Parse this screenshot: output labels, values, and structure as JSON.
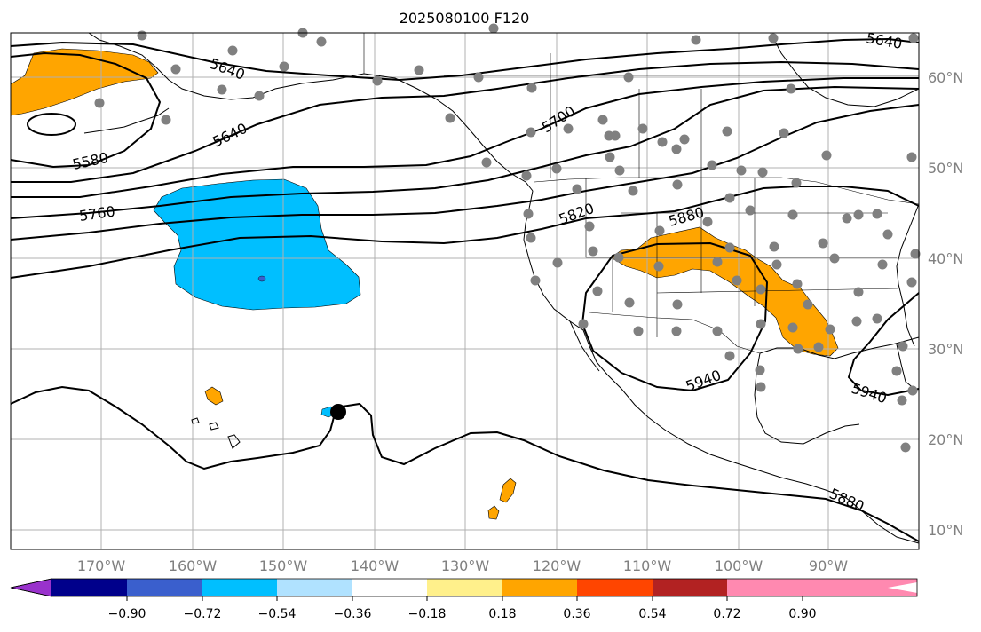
{
  "title": "2025080100 F120",
  "lon_labels": [
    "170°W",
    "160°W",
    "150°W",
    "140°W",
    "130°W",
    "120°W",
    "110°W",
    "100°W",
    "90°W"
  ],
  "lat_labels": [
    "60°N",
    "50°N",
    "40°N",
    "30°N",
    "20°N",
    "10°N"
  ],
  "contour_labels": [
    "5640",
    "5640",
    "5640",
    "5580",
    "5760",
    "5700",
    "5820",
    "5880",
    "5940",
    "5940",
    "5880"
  ],
  "colorbar": {
    "tick_labels": [
      "−0.90",
      "−0.72",
      "−0.54",
      "−0.36",
      "−0.18",
      "0.18",
      "0.36",
      "0.54",
      "0.72",
      "0.90"
    ],
    "colors": [
      "#9932cc",
      "#00008b",
      "#3a5fcd",
      "#00bfff",
      "#b0e2ff",
      "#ffffff",
      "#fff08b",
      "#ffa500",
      "#ff4500",
      "#b22222",
      "#ff89b0"
    ]
  },
  "shading_colors": {
    "negative_anomaly": "#00bfff",
    "strong_negative_anomaly": "#3a5fcd",
    "positive_anomaly": "#ffa500"
  },
  "station_color": "#808080",
  "storm_marker_color": "#000000"
}
